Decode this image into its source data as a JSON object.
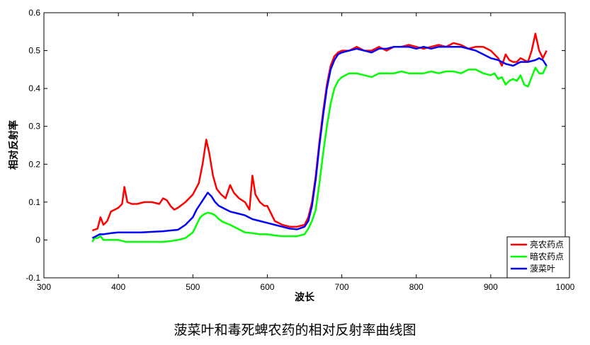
{
  "chart_data": {
    "type": "line",
    "title": "",
    "xlabel": "波长",
    "ylabel": "相对反射率",
    "xlim": [
      300,
      1000
    ],
    "ylim": [
      -0.1,
      0.6
    ],
    "xticks": [
      300,
      400,
      500,
      600,
      700,
      800,
      900,
      1000
    ],
    "yticks": [
      -0.1,
      0,
      0.1,
      0.2,
      0.3,
      0.4,
      0.5,
      0.6
    ],
    "grid": false,
    "legend_position": "bottom-right",
    "series": [
      {
        "name": "亮农药点",
        "color": "#ff0000",
        "points": [
          [
            365,
            0.025
          ],
          [
            372,
            0.03
          ],
          [
            376,
            0.06
          ],
          [
            380,
            0.04
          ],
          [
            385,
            0.05
          ],
          [
            390,
            0.075
          ],
          [
            395,
            0.08
          ],
          [
            400,
            0.085
          ],
          [
            405,
            0.095
          ],
          [
            408,
            0.14
          ],
          [
            412,
            0.1
          ],
          [
            418,
            0.095
          ],
          [
            425,
            0.095
          ],
          [
            435,
            0.1
          ],
          [
            445,
            0.1
          ],
          [
            455,
            0.095
          ],
          [
            460,
            0.11
          ],
          [
            465,
            0.105
          ],
          [
            470,
            0.09
          ],
          [
            475,
            0.08
          ],
          [
            480,
            0.085
          ],
          [
            490,
            0.1
          ],
          [
            500,
            0.12
          ],
          [
            508,
            0.15
          ],
          [
            513,
            0.2
          ],
          [
            518,
            0.265
          ],
          [
            522,
            0.23
          ],
          [
            527,
            0.17
          ],
          [
            532,
            0.135
          ],
          [
            538,
            0.12
          ],
          [
            544,
            0.11
          ],
          [
            550,
            0.145
          ],
          [
            555,
            0.125
          ],
          [
            562,
            0.11
          ],
          [
            570,
            0.1
          ],
          [
            576,
            0.08
          ],
          [
            580,
            0.17
          ],
          [
            584,
            0.12
          ],
          [
            590,
            0.1
          ],
          [
            596,
            0.09
          ],
          [
            600,
            0.09
          ],
          [
            605,
            0.07
          ],
          [
            610,
            0.05
          ],
          [
            615,
            0.045
          ],
          [
            620,
            0.04
          ],
          [
            630,
            0.035
          ],
          [
            640,
            0.035
          ],
          [
            650,
            0.04
          ],
          [
            655,
            0.06
          ],
          [
            660,
            0.1
          ],
          [
            665,
            0.17
          ],
          [
            670,
            0.26
          ],
          [
            675,
            0.34
          ],
          [
            680,
            0.41
          ],
          [
            685,
            0.46
          ],
          [
            690,
            0.485
          ],
          [
            695,
            0.495
          ],
          [
            700,
            0.5
          ],
          [
            710,
            0.5
          ],
          [
            720,
            0.51
          ],
          [
            730,
            0.5
          ],
          [
            740,
            0.5
          ],
          [
            750,
            0.51
          ],
          [
            760,
            0.5
          ],
          [
            770,
            0.51
          ],
          [
            780,
            0.51
          ],
          [
            790,
            0.515
          ],
          [
            800,
            0.51
          ],
          [
            810,
            0.505
          ],
          [
            820,
            0.51
          ],
          [
            830,
            0.515
          ],
          [
            840,
            0.51
          ],
          [
            850,
            0.52
          ],
          [
            860,
            0.515
          ],
          [
            870,
            0.505
          ],
          [
            880,
            0.51
          ],
          [
            890,
            0.51
          ],
          [
            900,
            0.5
          ],
          [
            910,
            0.48
          ],
          [
            915,
            0.46
          ],
          [
            920,
            0.49
          ],
          [
            925,
            0.475
          ],
          [
            930,
            0.47
          ],
          [
            935,
            0.47
          ],
          [
            940,
            0.48
          ],
          [
            945,
            0.475
          ],
          [
            950,
            0.47
          ],
          [
            955,
            0.5
          ],
          [
            960,
            0.545
          ],
          [
            965,
            0.5
          ],
          [
            970,
            0.48
          ],
          [
            975,
            0.5
          ]
        ]
      },
      {
        "name": "暗农药点",
        "color": "#00ff00",
        "points": [
          [
            365,
            -0.005
          ],
          [
            368,
            0.005
          ],
          [
            372,
            0.005
          ],
          [
            376,
            0.01
          ],
          [
            380,
            0.0
          ],
          [
            390,
            0.0
          ],
          [
            400,
            0.0
          ],
          [
            410,
            -0.005
          ],
          [
            420,
            -0.005
          ],
          [
            430,
            -0.005
          ],
          [
            440,
            -0.005
          ],
          [
            450,
            -0.005
          ],
          [
            460,
            -0.005
          ],
          [
            470,
            -0.003
          ],
          [
            480,
            0.0
          ],
          [
            490,
            0.005
          ],
          [
            500,
            0.02
          ],
          [
            505,
            0.04
          ],
          [
            510,
            0.06
          ],
          [
            515,
            0.068
          ],
          [
            520,
            0.072
          ],
          [
            525,
            0.07
          ],
          [
            530,
            0.065
          ],
          [
            535,
            0.055
          ],
          [
            540,
            0.048
          ],
          [
            550,
            0.04
          ],
          [
            560,
            0.03
          ],
          [
            570,
            0.02
          ],
          [
            580,
            0.018
          ],
          [
            590,
            0.015
          ],
          [
            600,
            0.015
          ],
          [
            610,
            0.012
          ],
          [
            620,
            0.01
          ],
          [
            630,
            0.01
          ],
          [
            640,
            0.01
          ],
          [
            650,
            0.015
          ],
          [
            655,
            0.03
          ],
          [
            660,
            0.05
          ],
          [
            665,
            0.08
          ],
          [
            670,
            0.15
          ],
          [
            675,
            0.23
          ],
          [
            680,
            0.3
          ],
          [
            685,
            0.36
          ],
          [
            690,
            0.4
          ],
          [
            695,
            0.42
          ],
          [
            700,
            0.43
          ],
          [
            710,
            0.44
          ],
          [
            720,
            0.44
          ],
          [
            730,
            0.435
          ],
          [
            740,
            0.43
          ],
          [
            750,
            0.44
          ],
          [
            760,
            0.44
          ],
          [
            770,
            0.44
          ],
          [
            780,
            0.445
          ],
          [
            790,
            0.44
          ],
          [
            800,
            0.44
          ],
          [
            810,
            0.44
          ],
          [
            820,
            0.445
          ],
          [
            830,
            0.44
          ],
          [
            840,
            0.445
          ],
          [
            850,
            0.445
          ],
          [
            860,
            0.44
          ],
          [
            870,
            0.45
          ],
          [
            880,
            0.45
          ],
          [
            890,
            0.44
          ],
          [
            900,
            0.435
          ],
          [
            905,
            0.44
          ],
          [
            910,
            0.425
          ],
          [
            915,
            0.43
          ],
          [
            920,
            0.41
          ],
          [
            925,
            0.42
          ],
          [
            930,
            0.425
          ],
          [
            935,
            0.42
          ],
          [
            940,
            0.435
          ],
          [
            945,
            0.41
          ],
          [
            950,
            0.405
          ],
          [
            955,
            0.43
          ],
          [
            960,
            0.455
          ],
          [
            965,
            0.44
          ],
          [
            970,
            0.44
          ],
          [
            975,
            0.46
          ]
        ]
      },
      {
        "name": "菠菜叶",
        "color": "#0000ff",
        "points": [
          [
            365,
            0.005
          ],
          [
            370,
            0.01
          ],
          [
            375,
            0.015
          ],
          [
            380,
            0.015
          ],
          [
            390,
            0.018
          ],
          [
            400,
            0.02
          ],
          [
            410,
            0.02
          ],
          [
            420,
            0.02
          ],
          [
            430,
            0.02
          ],
          [
            440,
            0.021
          ],
          [
            450,
            0.022
          ],
          [
            460,
            0.023
          ],
          [
            470,
            0.025
          ],
          [
            480,
            0.027
          ],
          [
            490,
            0.04
          ],
          [
            500,
            0.06
          ],
          [
            505,
            0.08
          ],
          [
            510,
            0.095
          ],
          [
            515,
            0.11
          ],
          [
            520,
            0.125
          ],
          [
            525,
            0.115
          ],
          [
            530,
            0.1
          ],
          [
            535,
            0.09
          ],
          [
            540,
            0.085
          ],
          [
            550,
            0.075
          ],
          [
            560,
            0.07
          ],
          [
            570,
            0.065
          ],
          [
            580,
            0.055
          ],
          [
            590,
            0.05
          ],
          [
            600,
            0.045
          ],
          [
            610,
            0.04
          ],
          [
            620,
            0.035
          ],
          [
            630,
            0.03
          ],
          [
            640,
            0.028
          ],
          [
            650,
            0.035
          ],
          [
            655,
            0.05
          ],
          [
            660,
            0.09
          ],
          [
            665,
            0.16
          ],
          [
            670,
            0.25
          ],
          [
            675,
            0.33
          ],
          [
            680,
            0.4
          ],
          [
            685,
            0.45
          ],
          [
            690,
            0.475
          ],
          [
            695,
            0.49
          ],
          [
            700,
            0.495
          ],
          [
            710,
            0.5
          ],
          [
            720,
            0.505
          ],
          [
            730,
            0.5
          ],
          [
            740,
            0.495
          ],
          [
            750,
            0.505
          ],
          [
            760,
            0.505
          ],
          [
            770,
            0.51
          ],
          [
            780,
            0.51
          ],
          [
            790,
            0.51
          ],
          [
            800,
            0.505
          ],
          [
            810,
            0.51
          ],
          [
            820,
            0.505
          ],
          [
            830,
            0.51
          ],
          [
            840,
            0.51
          ],
          [
            850,
            0.51
          ],
          [
            860,
            0.51
          ],
          [
            870,
            0.505
          ],
          [
            880,
            0.5
          ],
          [
            890,
            0.49
          ],
          [
            900,
            0.48
          ],
          [
            910,
            0.475
          ],
          [
            920,
            0.465
          ],
          [
            930,
            0.46
          ],
          [
            940,
            0.47
          ],
          [
            950,
            0.47
          ],
          [
            960,
            0.475
          ],
          [
            965,
            0.48
          ],
          [
            970,
            0.475
          ],
          [
            975,
            0.46
          ]
        ]
      }
    ]
  },
  "caption": "菠菜叶和毒死蜱农药的相对反射率曲线图"
}
